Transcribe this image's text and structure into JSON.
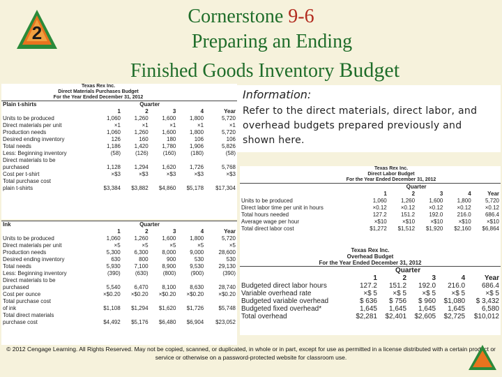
{
  "slide": {
    "badge_number": "2",
    "title_prefix": "Cornerstone",
    "title_number": "9-6",
    "subtitle_line1": "Preparing an Ending",
    "subtitle_line2a": "Finished Goods Inventory",
    "subtitle_line2b": "Budget",
    "footer": "© 2012 Cengage Learning. All Rights Reserved. May not be copied, scanned, or duplicated, in whole or in part, except for use as permitted in a license distributed with a certain product or service or otherwise on a password-protected website for classroom use."
  },
  "info": {
    "heading": "Information:",
    "text": "Refer to the direct materials, direct labor, and overhead budgets prepared previously and shown here."
  },
  "purchases": {
    "company": "Texas Rex Inc.",
    "title": "Direct Materials Purchases Budget",
    "period": "For the Year Ended December 31, 2012",
    "quarter_label": "Quarter",
    "year_label": "Year",
    "section1": "Plain t-shirts",
    "section2": "Ink",
    "cols": [
      "1",
      "2",
      "3",
      "4"
    ],
    "rows1": [
      [
        "Units to be produced",
        "1,060",
        "1,260",
        "1,600",
        "1,800",
        "5,720"
      ],
      [
        "Direct materials per unit",
        "×1",
        "×1",
        "×1",
        "×1",
        "×1"
      ],
      [
        "Production needs",
        "1,060",
        "1,260",
        "1,600",
        "1,800",
        "5,720"
      ],
      [
        "Desired ending inventory",
        "126",
        "160",
        "180",
        "106",
        "106"
      ],
      [
        "Total needs",
        "1,186",
        "1,420",
        "1,780",
        "1,906",
        "5,826"
      ],
      [
        "Less: Beginning inventory",
        "(58)",
        "(126)",
        "(160)",
        "(180)",
        "(58)"
      ],
      [
        "Direct materials to be",
        "",
        "",
        "",
        "",
        ""
      ],
      [
        "purchased",
        "1,128",
        "1,294",
        "1,620",
        "1,726",
        "5,768"
      ],
      [
        "Cost per t-shirt",
        "×$3",
        "×$3",
        "×$3",
        "×$3",
        "×$3"
      ],
      [
        "Total purchase cost",
        "",
        "",
        "",
        "",
        ""
      ],
      [
        "plain t-shirts",
        "$3,384",
        "$3,882",
        "$4,860",
        "$5,178",
        "$17,304"
      ]
    ],
    "rows2": [
      [
        "Units to be produced",
        "1,060",
        "1,260",
        "1,600",
        "1,800",
        "5,720"
      ],
      [
        "Direct materials per unit",
        "×5",
        "×5",
        "×5",
        "×5",
        "×5"
      ],
      [
        "Production needs",
        "5,300",
        "6,300",
        "8,000",
        "9,000",
        "28,600"
      ],
      [
        "Desired ending inventory",
        "630",
        "800",
        "900",
        "530",
        "530"
      ],
      [
        "Total needs",
        "5,930",
        "7,100",
        "8,900",
        "9,530",
        "29,130"
      ],
      [
        "Less: Beginning inventory",
        "(390)",
        "(630)",
        "(800)",
        "(900)",
        "(390)"
      ],
      [
        "Direct materials to be",
        "",
        "",
        "",
        "",
        ""
      ],
      [
        "purchased",
        "5,540",
        "6,470",
        "8,100",
        "8,630",
        "28,740"
      ],
      [
        "Cost per ounce",
        "×$0.20",
        "×$0.20",
        "×$0.20",
        "×$0.20",
        "×$0.20"
      ],
      [
        "Total purchase cost",
        "",
        "",
        "",
        "",
        ""
      ],
      [
        "of ink",
        "$1,108",
        "$1,294",
        "$1,620",
        "$1,726",
        "$5,748"
      ],
      [
        "Total direct materials",
        "",
        "",
        "",
        "",
        ""
      ],
      [
        "purchase cost",
        "$4,492",
        "$5,176",
        "$6,480",
        "$6,904",
        "$23,052"
      ]
    ]
  },
  "labor": {
    "company": "Texas Rex Inc.",
    "title": "Direct Labor Budget",
    "period": "For the Year Ended December 31, 2012",
    "quarter_label": "Quarter",
    "year_label": "Year",
    "cols": [
      "1",
      "2",
      "3",
      "4"
    ],
    "rows": [
      [
        "Units to be produced",
        "1,060",
        "1,260",
        "1,600",
        "1,800",
        "5,720"
      ],
      [
        "Direct labor time per unit in hours",
        "×0.12",
        "×0.12",
        "×0.12",
        "×0.12",
        "×0.12"
      ],
      [
        "Total hours needed",
        "127.2",
        "151.2",
        "192.0",
        "216.0",
        "686.4"
      ],
      [
        "Average wage per hour",
        "×$10",
        "×$10",
        "×$10",
        "×$10",
        "×$10"
      ],
      [
        "Total direct labor cost",
        "$1,272",
        "$1,512",
        "$1,920",
        "$2,160",
        "$6,864"
      ]
    ]
  },
  "overhead": {
    "company": "Texas Rex Inc.",
    "title": "Overhead Budget",
    "period": "For the Year Ended December 31, 2012",
    "quarter_label": "Quarter",
    "year_label": "Year",
    "cols": [
      "1",
      "2",
      "3",
      "4"
    ],
    "rows": [
      [
        "Budgeted direct labor hours",
        "127.2",
        "151.2",
        "192.0",
        "216.0",
        "686.4"
      ],
      [
        "Variable overhead rate",
        "×$ 5",
        "×$ 5",
        "×$ 5",
        "×$ 5",
        "×$ 5"
      ],
      [
        "Budgeted variable overhead",
        "$ 636",
        "$ 756",
        "$ 960",
        "$1,080",
        "$ 3,432"
      ],
      [
        "Budgeted fixed overhead*",
        "1,645",
        "1,645",
        "1,645",
        "1,645",
        "6,580"
      ],
      [
        "Total overhead",
        "$2,281",
        "$2,401",
        "$2,605",
        "$2,725",
        "$10,012"
      ]
    ]
  },
  "colors": {
    "title_green": "#1f6d2a",
    "title_red": "#b22a1e",
    "accent_orange": "#e8731e",
    "badge_green": "#2a8a3a"
  }
}
